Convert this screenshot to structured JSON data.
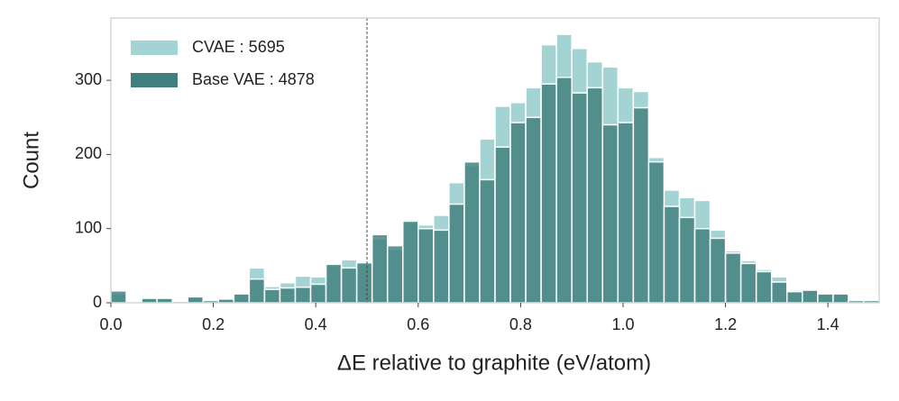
{
  "chart_data": {
    "type": "histogram",
    "xlabel": "ΔE relative to graphite (eV/atom)",
    "ylabel": "Count",
    "bins": [
      0,
      0.03,
      0.06,
      0.09,
      0.12,
      0.15,
      0.18,
      0.21,
      0.24,
      0.27,
      0.3,
      0.33,
      0.36,
      0.39,
      0.42,
      0.45,
      0.48,
      0.51,
      0.54,
      0.57,
      0.6,
      0.63,
      0.66,
      0.69,
      0.72,
      0.75,
      0.78,
      0.81,
      0.84,
      0.87,
      0.9,
      0.93,
      0.96,
      0.99,
      1.02,
      1.05,
      1.08,
      1.11,
      1.14,
      1.17,
      1.2,
      1.23,
      1.26,
      1.29,
      1.32,
      1.35,
      1.38,
      1.41,
      1.44,
      1.47,
      1.5
    ],
    "series": [
      {
        "name": "CVAE : 5695",
        "color": "#a3d4d3",
        "values": [
          12,
          1,
          6,
          6,
          3,
          8,
          4,
          6,
          12,
          47,
          22,
          27,
          36,
          35,
          50,
          58,
          53,
          86,
          72,
          112,
          105,
          118,
          162,
          185,
          221,
          265,
          270,
          290,
          348,
          362,
          343,
          325,
          318,
          290,
          285,
          196,
          152,
          142,
          138,
          98,
          70,
          57,
          45,
          35,
          17,
          17,
          12,
          12,
          4,
          4
        ]
      },
      {
        "name": "Base VAE : 4878",
        "color": "#3f7f7c",
        "values": [
          16,
          0,
          6,
          6,
          2,
          8,
          3,
          5,
          12,
          32,
          18,
          20,
          21,
          25,
          52,
          47,
          54,
          92,
          77,
          110,
          100,
          98,
          133,
          190,
          166,
          210,
          243,
          250,
          295,
          304,
          283,
          290,
          240,
          243,
          263,
          190,
          130,
          115,
          100,
          87,
          67,
          53,
          42,
          28,
          15,
          17,
          12,
          12,
          3,
          3
        ]
      }
    ],
    "vline": 0.5,
    "xlim": [
      0,
      1.5
    ],
    "ylim": [
      0,
      384
    ],
    "xticks": [
      {
        "value": 0,
        "label": "0.0"
      },
      {
        "value": 0.2,
        "label": "0.2"
      },
      {
        "value": 0.4,
        "label": "0.4"
      },
      {
        "value": 0.6,
        "label": "0.6"
      },
      {
        "value": 0.8,
        "label": "0.8"
      },
      {
        "value": 1.0,
        "label": "1.0"
      },
      {
        "value": 1.2,
        "label": "1.2"
      },
      {
        "value": 1.4,
        "label": "1.4"
      }
    ],
    "yticks": [
      0,
      100,
      200,
      300
    ],
    "legend": "upper left"
  }
}
